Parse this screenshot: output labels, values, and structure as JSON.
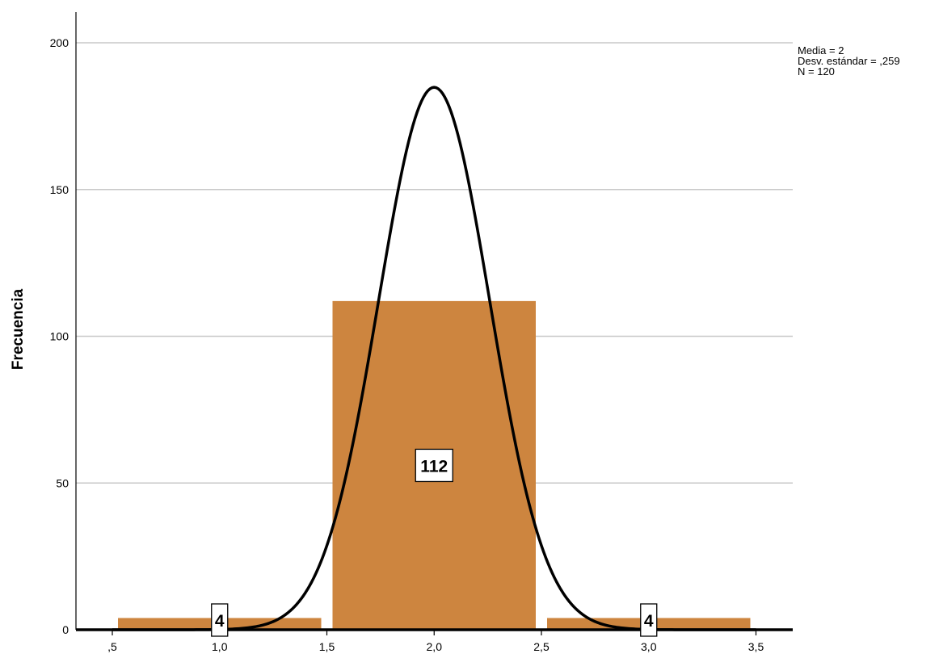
{
  "chart_data": {
    "type": "bar",
    "subtype": "histogram",
    "title": "",
    "xlabel": "",
    "ylabel": "Frecuencia",
    "xlim": [
      0.45,
      3.65
    ],
    "ylim": [
      0,
      210
    ],
    "xticks": [
      0.5,
      1.0,
      1.5,
      2.0,
      2.5,
      3.0,
      3.5
    ],
    "xtick_labels": [
      ",5",
      "1,0",
      "1,5",
      "2,0",
      "2,5",
      "3,0",
      "3,5"
    ],
    "yticks": [
      0,
      50,
      100,
      150,
      200
    ],
    "ytick_labels": [
      "0",
      "50",
      "100",
      "150",
      "200"
    ],
    "grid": "horizontal",
    "bar_color": "#cd853f",
    "bins": [
      {
        "start": 0.5,
        "end": 1.5,
        "value": 4,
        "label": "4"
      },
      {
        "start": 1.5,
        "end": 2.5,
        "value": 112,
        "label": "112"
      },
      {
        "start": 2.5,
        "end": 3.5,
        "value": 4,
        "label": "4"
      }
    ],
    "normal_curve": {
      "mean": 2.0,
      "sd": 0.259,
      "n": 120,
      "bin_width": 1.0,
      "color": "#000000"
    },
    "stats": {
      "mean_label": "Media = 2",
      "sd_label": "Desv. estándar = ,259",
      "n_label": "N = 120"
    }
  }
}
